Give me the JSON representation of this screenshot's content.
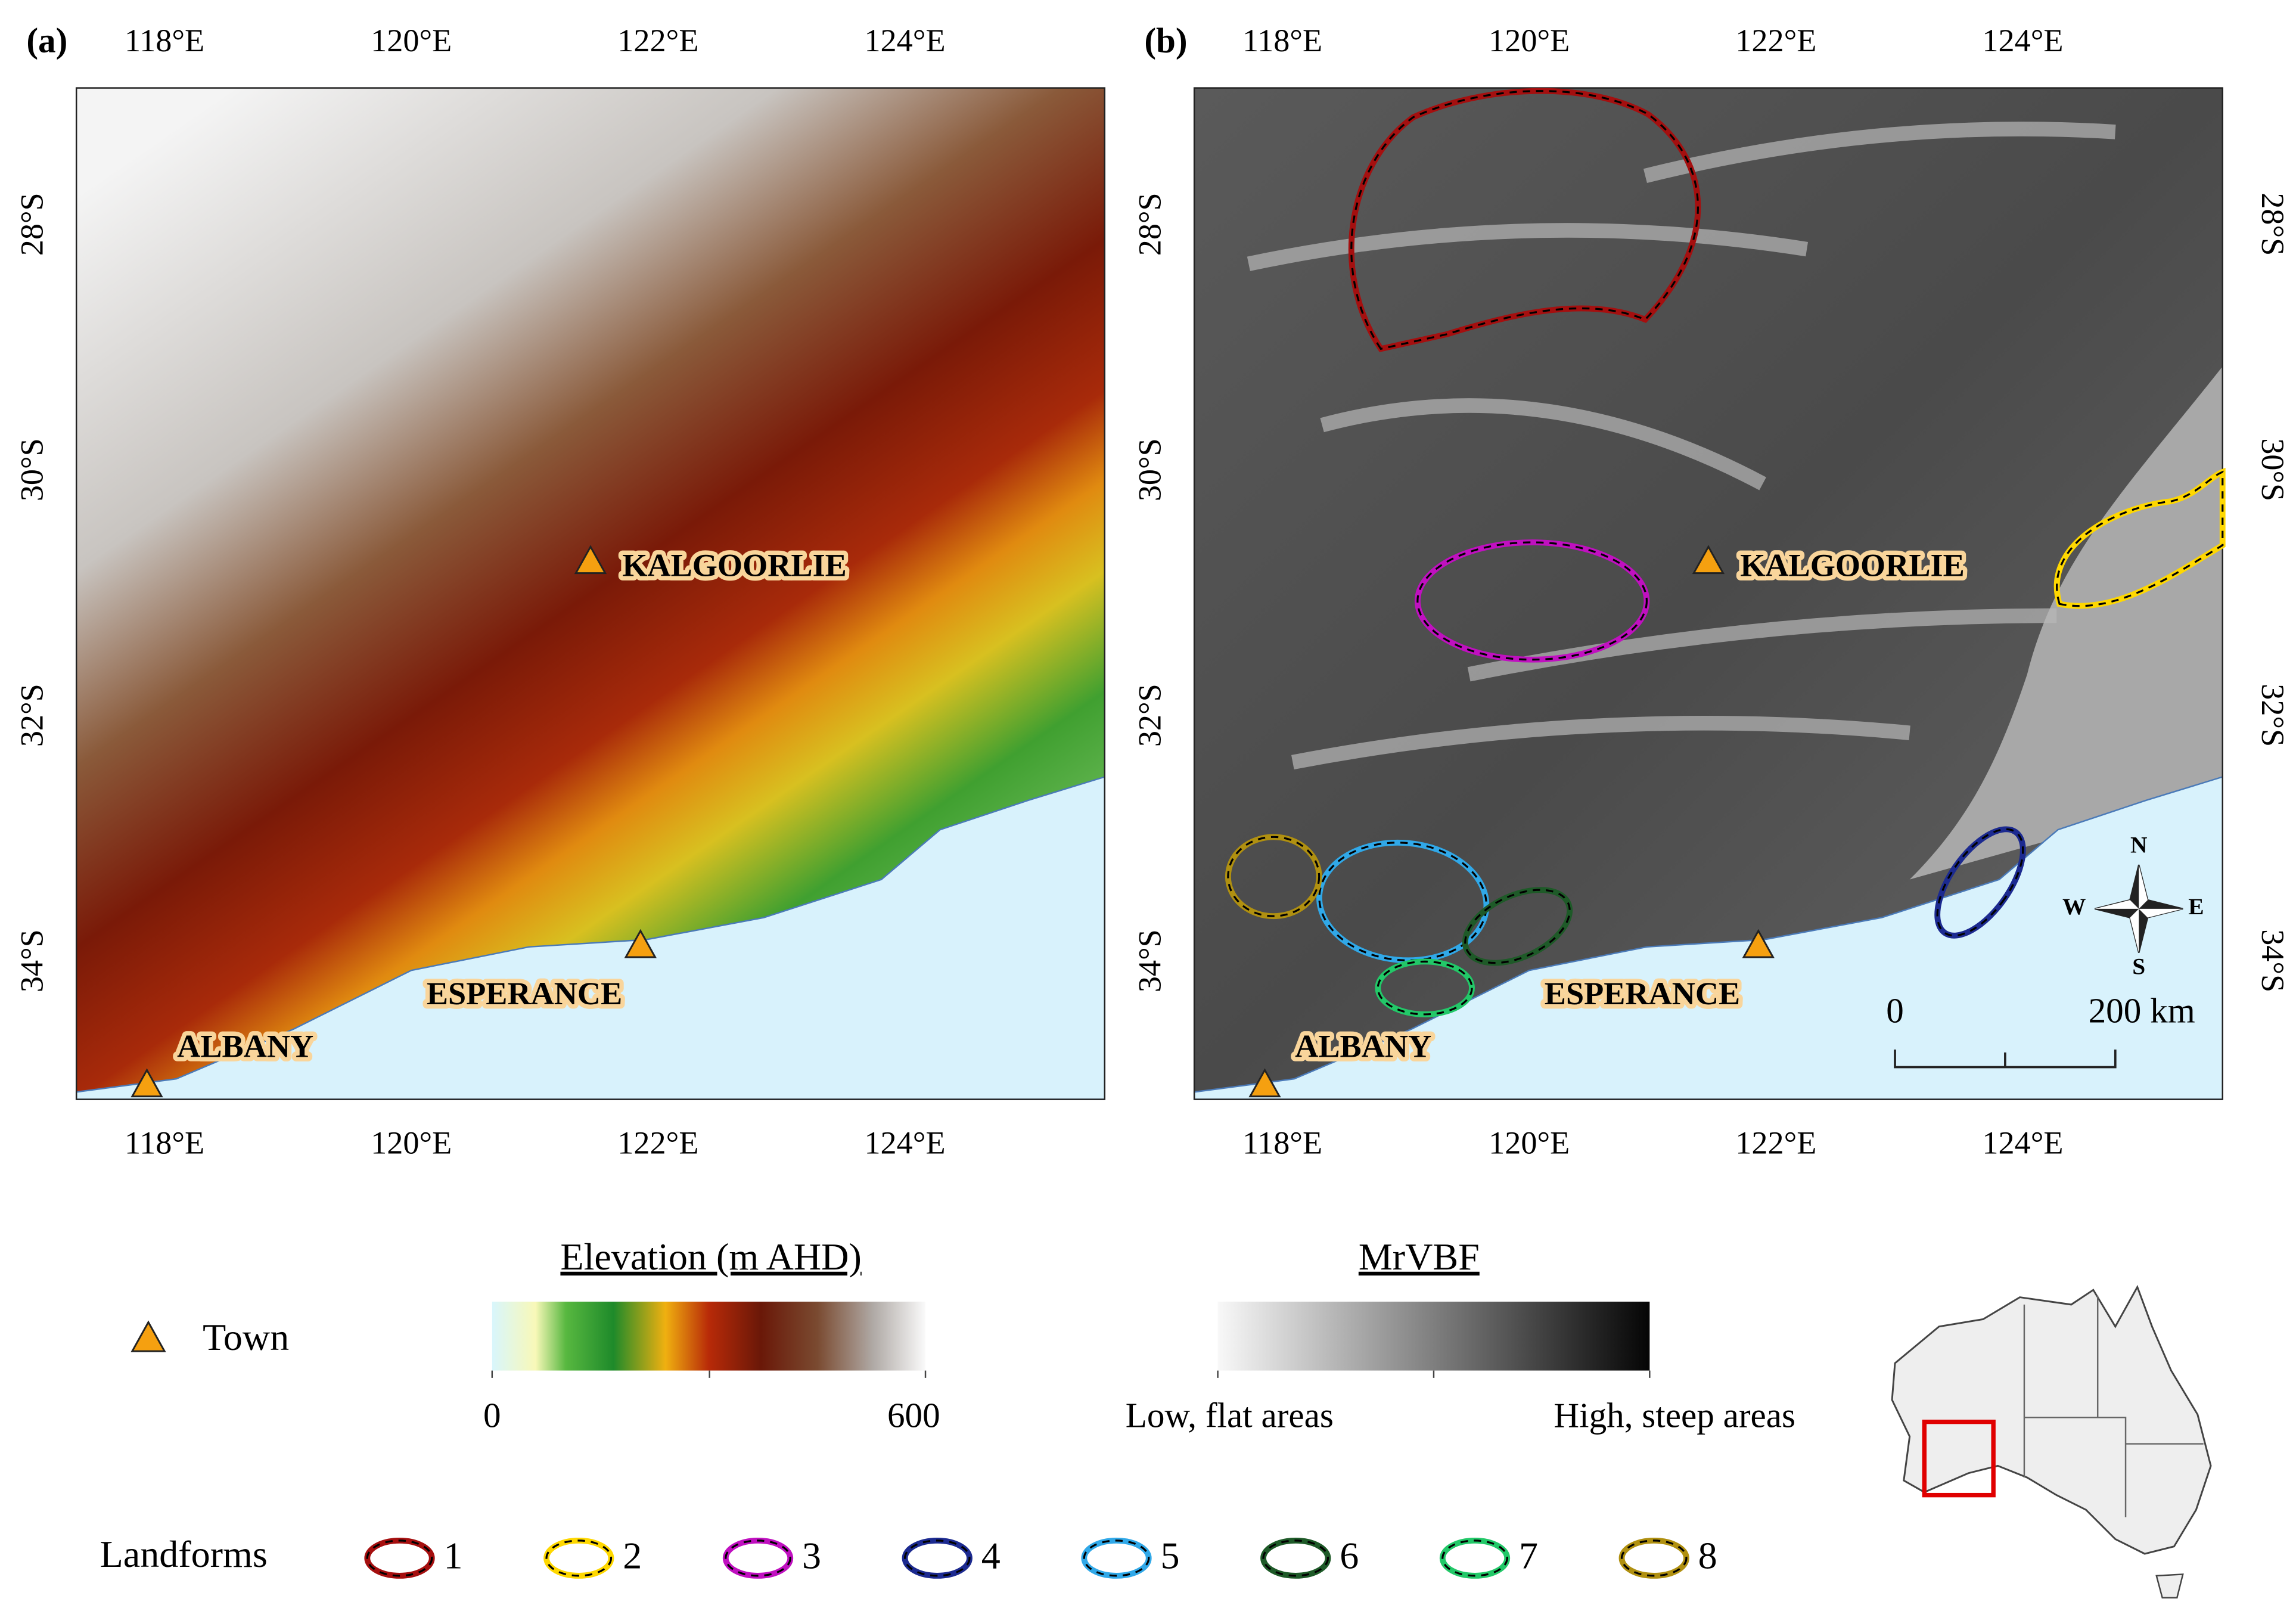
{
  "panels": [
    {
      "label": "(a)"
    },
    {
      "label": "(b)"
    }
  ],
  "lon_labels": [
    "118°E",
    "120°E",
    "122°E",
    "124°E"
  ],
  "lat_labels": [
    "28°S",
    "30°S",
    "32°S",
    "34°S"
  ],
  "towns": [
    "KALGOORLIE",
    "ESPERANCE",
    "ALBANY"
  ],
  "legend": {
    "town": "Town",
    "elevation": {
      "title": "Elevation (m AHD)",
      "min": 0,
      "max": 600
    },
    "mrvbf": {
      "title": "MrVBF",
      "low": "Low, flat areas",
      "high": "High, steep areas"
    },
    "landforms": {
      "title": "Landforms",
      "items": [
        {
          "label": "1",
          "color": "#a50f0f"
        },
        {
          "label": "2",
          "color": "#ffd800"
        },
        {
          "label": "3",
          "color": "#c010c0"
        },
        {
          "label": "4",
          "color": "#1c2a90"
        },
        {
          "label": "5",
          "color": "#30a8e8"
        },
        {
          "label": "6",
          "color": "#1e5a28"
        },
        {
          "label": "7",
          "color": "#22c868"
        },
        {
          "label": "8",
          "color": "#b09010"
        }
      ]
    }
  },
  "scale_bar": {
    "start": "0",
    "end": "200 km"
  },
  "compass": {
    "n": "N",
    "e": "E",
    "s": "S",
    "w": "W"
  }
}
